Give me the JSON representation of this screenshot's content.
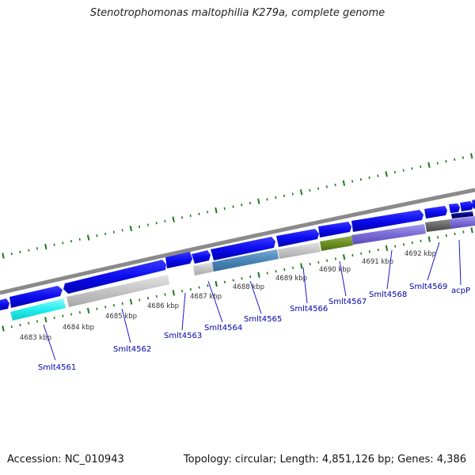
{
  "title": "Stenotrophomonas maltophilia K279a, complete genome",
  "footer": {
    "accession": "Accession: NC_010943",
    "summary": "Topology: circular; Length: 4,851,126 bp; Genes: 4,386"
  },
  "colors": {
    "forward_gene": "#0b0bee",
    "backbone": "#8a8a8a",
    "ticks": "#1a7a1a",
    "label": "#0000aa",
    "cyan_gene": "#22eeee",
    "grey_gene": "#c4c4c4",
    "steelblue_gene": "#4a86b8",
    "olive_gene": "#6b8e23",
    "purple_gene": "#7a6bd6",
    "darkgrey_gene": "#666666",
    "navy_gene": "#000080"
  },
  "scale_labels": [
    "4683 kbp",
    "4684 kbp",
    "4685 kbp",
    "4686 kbp",
    "4687 kbp",
    "4688 kbp",
    "4689 kbp",
    "4690 kbp",
    "4691 kbp",
    "4692 kbp"
  ],
  "gene_labels": [
    "Smlt4561",
    "Smlt4562",
    "Smlt4563",
    "Smlt4564",
    "Smlt4565",
    "Smlt4566",
    "Smlt4567",
    "Smlt4568",
    "Smlt4569",
    "acpP"
  ]
}
